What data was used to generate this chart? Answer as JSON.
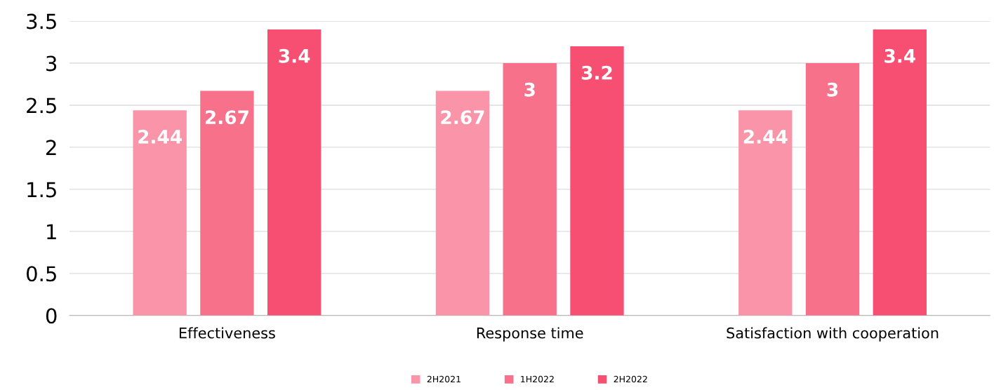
{
  "chart_data": {
    "type": "bar",
    "categories": [
      "Effectiveness",
      "Response time",
      "Satisfaction with cooperation"
    ],
    "series": [
      {
        "name": "2H2021",
        "color": "#f994a9",
        "values": [
          2.44,
          2.67,
          2.44
        ]
      },
      {
        "name": "1H2022",
        "color": "#f7718b",
        "values": [
          2.67,
          3,
          3
        ]
      },
      {
        "name": "2H2022",
        "color": "#f74f72",
        "values": [
          3.4,
          3.2,
          3.4
        ]
      }
    ],
    "ylim": [
      0,
      3.5
    ],
    "yticks": [
      0,
      0.5,
      1,
      1.5,
      2,
      2.5,
      3,
      3.5
    ],
    "grid": "y",
    "legend": "bottom",
    "data_labels": true
  }
}
